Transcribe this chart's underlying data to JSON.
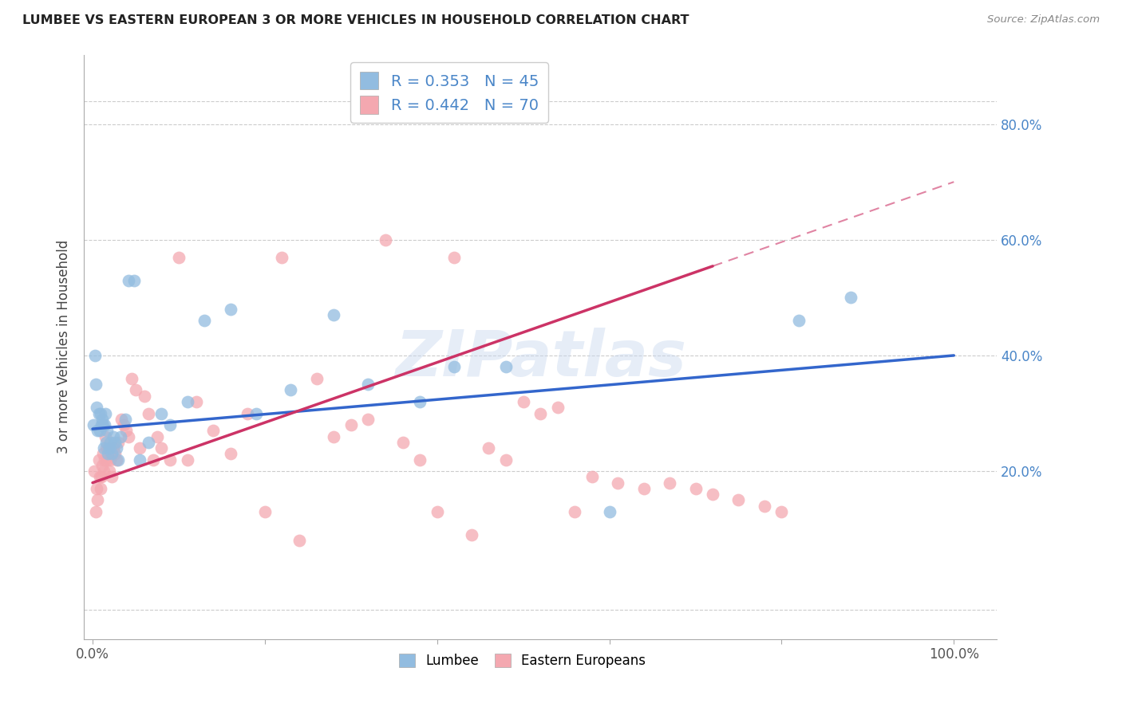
{
  "title": "LUMBEE VS EASTERN EUROPEAN 3 OR MORE VEHICLES IN HOUSEHOLD CORRELATION CHART",
  "source": "Source: ZipAtlas.com",
  "ylabel": "3 or more Vehicles in Household",
  "y_ticks": [
    0.2,
    0.4,
    0.6,
    0.8
  ],
  "y_tick_labels": [
    "20.0%",
    "40.0%",
    "60.0%",
    "80.0%"
  ],
  "x_tick_labels": [
    "0.0%",
    "100.0%"
  ],
  "x_ticks": [
    0.0,
    1.0
  ],
  "lumbee_color": "#92bce0",
  "eastern_color": "#f4a8b0",
  "lumbee_line_color": "#3366cc",
  "eastern_line_color": "#cc3366",
  "right_axis_color": "#4a86c8",
  "lumbee_R": 0.353,
  "lumbee_N": 45,
  "eastern_R": 0.442,
  "eastern_N": 70,
  "watermark": "ZIPatlas",
  "lumbee_x": [
    0.001,
    0.003,
    0.004,
    0.005,
    0.006,
    0.007,
    0.008,
    0.009,
    0.01,
    0.011,
    0.012,
    0.013,
    0.014,
    0.015,
    0.016,
    0.017,
    0.018,
    0.019,
    0.02,
    0.022,
    0.024,
    0.026,
    0.028,
    0.03,
    0.032,
    0.038,
    0.042,
    0.048,
    0.055,
    0.065,
    0.08,
    0.09,
    0.11,
    0.13,
    0.16,
    0.19,
    0.23,
    0.28,
    0.32,
    0.38,
    0.42,
    0.48,
    0.6,
    0.82,
    0.88
  ],
  "lumbee_y": [
    0.28,
    0.4,
    0.35,
    0.31,
    0.27,
    0.3,
    0.27,
    0.3,
    0.28,
    0.29,
    0.28,
    0.24,
    0.28,
    0.3,
    0.25,
    0.27,
    0.23,
    0.24,
    0.25,
    0.23,
    0.26,
    0.25,
    0.24,
    0.22,
    0.26,
    0.29,
    0.53,
    0.53,
    0.22,
    0.25,
    0.3,
    0.28,
    0.32,
    0.46,
    0.48,
    0.3,
    0.34,
    0.47,
    0.35,
    0.32,
    0.38,
    0.38,
    0.13,
    0.46,
    0.5
  ],
  "eastern_x": [
    0.002,
    0.004,
    0.005,
    0.006,
    0.007,
    0.008,
    0.009,
    0.01,
    0.011,
    0.012,
    0.013,
    0.014,
    0.015,
    0.016,
    0.017,
    0.018,
    0.019,
    0.02,
    0.022,
    0.024,
    0.026,
    0.028,
    0.03,
    0.033,
    0.036,
    0.039,
    0.042,
    0.045,
    0.05,
    0.055,
    0.06,
    0.065,
    0.07,
    0.075,
    0.08,
    0.09,
    0.1,
    0.11,
    0.12,
    0.14,
    0.16,
    0.18,
    0.2,
    0.22,
    0.24,
    0.26,
    0.28,
    0.3,
    0.32,
    0.34,
    0.36,
    0.38,
    0.4,
    0.42,
    0.44,
    0.46,
    0.48,
    0.5,
    0.52,
    0.54,
    0.56,
    0.58,
    0.61,
    0.64,
    0.67,
    0.7,
    0.72,
    0.75,
    0.78,
    0.8
  ],
  "eastern_y": [
    0.2,
    0.13,
    0.17,
    0.15,
    0.22,
    0.19,
    0.17,
    0.19,
    0.21,
    0.23,
    0.2,
    0.22,
    0.26,
    0.24,
    0.22,
    0.24,
    0.2,
    0.22,
    0.19,
    0.24,
    0.23,
    0.22,
    0.25,
    0.29,
    0.28,
    0.27,
    0.26,
    0.36,
    0.34,
    0.24,
    0.33,
    0.3,
    0.22,
    0.26,
    0.24,
    0.22,
    0.57,
    0.22,
    0.32,
    0.27,
    0.23,
    0.3,
    0.13,
    0.57,
    0.08,
    0.36,
    0.26,
    0.28,
    0.29,
    0.6,
    0.25,
    0.22,
    0.13,
    0.57,
    0.09,
    0.24,
    0.22,
    0.32,
    0.3,
    0.31,
    0.13,
    0.19,
    0.18,
    0.17,
    0.18,
    0.17,
    0.16,
    0.15,
    0.14,
    0.13
  ],
  "lumbee_intercept": 0.273,
  "lumbee_slope": 0.127,
  "eastern_intercept": 0.18,
  "eastern_slope": 0.52,
  "eastern_line_end_x": 0.72
}
